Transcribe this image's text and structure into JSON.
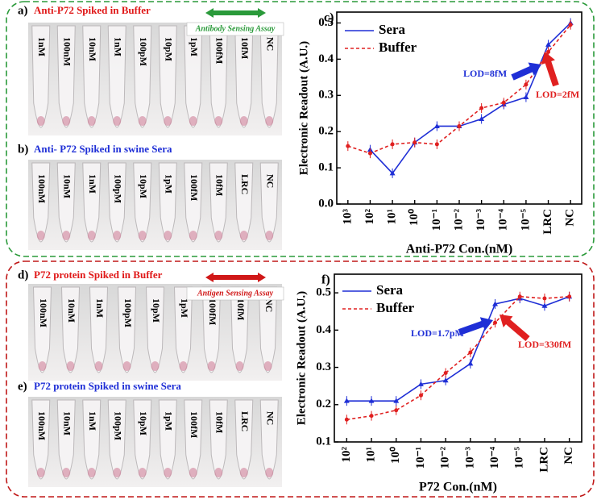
{
  "panels": {
    "a": {
      "letter": "a)",
      "title": "Anti-P72 Spiked in Buffer",
      "assay": "Antibody Sensing Assay",
      "tubes": [
        "1nM",
        "100nM",
        "10nM",
        "1nM",
        "100pM",
        "10pM",
        "1pM",
        "100fM",
        "10fM",
        "NC"
      ]
    },
    "b": {
      "letter": "b)",
      "title": "Anti- P72 Spiked in swine Sera",
      "tubes": [
        "100nM",
        "10nM",
        "1nM",
        "100pM",
        "10pM",
        "1pM",
        "100fM",
        "10fM",
        "LRC",
        "NC"
      ]
    },
    "d": {
      "letter": "d)",
      "title": "P72 protein Spiked in Buffer",
      "assay": "Antigen Sensing Assay",
      "tubes": [
        "100nM",
        "10nM",
        "1nM",
        "100pM",
        "10pM",
        "1pM",
        "100fM",
        "10fM",
        "NC"
      ]
    },
    "e": {
      "letter": "e)",
      "title": "P72 protein Spiked in swine Sera",
      "tubes": [
        "100nM",
        "10nM",
        "1nM",
        "100pM",
        "10pM",
        "1pM",
        "100fM",
        "10fM",
        "LRC",
        "NC"
      ]
    }
  },
  "chart_data": [
    {
      "type": "line",
      "title": "c)",
      "x_label": "Anti-P72 Con.(nM)",
      "y_label": "Electronic Readout (A.U.)",
      "categories": [
        "10³",
        "10²",
        "10¹",
        "10⁰",
        "10⁻¹",
        "10⁻²",
        "10⁻³",
        "10⁻⁴",
        "10⁻⁵",
        "LRC",
        "NC"
      ],
      "series": [
        {
          "name": "Sera",
          "color": "#1f2fd6",
          "values": [
            null,
            0.15,
            0.085,
            0.17,
            0.215,
            0.215,
            0.235,
            0.275,
            0.295,
            0.44,
            0.5
          ]
        },
        {
          "name": "Buffer",
          "color": "#e02020",
          "values": [
            0.16,
            0.14,
            0.165,
            0.17,
            0.165,
            0.215,
            0.265,
            0.28,
            0.33,
            0.42,
            0.495
          ]
        }
      ],
      "ylim": [
        0,
        0.53
      ],
      "yticks": [
        {
          "value": 0,
          "label": "0.0"
        },
        0.1,
        0.2,
        0.3,
        0.4,
        0.5
      ],
      "annotations": [
        {
          "text": "LOD=8fM",
          "color": "#1f2fd6"
        },
        {
          "text": "LOD=2fM",
          "color": "#e02020"
        }
      ]
    },
    {
      "type": "line",
      "title": "f)",
      "x_label": "P72 Con.(nM)",
      "y_label": "Electronic Readout (A.U.)",
      "categories": [
        "10²",
        "10¹",
        "10⁰",
        "10⁻¹",
        "10⁻²",
        "10⁻³",
        "10⁻⁴",
        "10⁻⁵",
        "LRC",
        "NC"
      ],
      "series": [
        {
          "name": "Sera",
          "color": "#1f2fd6",
          "values": [
            0.21,
            0.21,
            0.21,
            0.255,
            0.265,
            0.31,
            0.47,
            0.485,
            0.465,
            0.49
          ]
        },
        {
          "name": "Buffer",
          "color": "#e02020",
          "values": [
            0.16,
            0.17,
            0.185,
            0.225,
            0.285,
            0.34,
            0.42,
            0.49,
            0.485,
            0.49
          ]
        }
      ],
      "ylim": [
        0.1,
        0.55
      ],
      "yticks": [
        0.1,
        0.2,
        0.3,
        0.4,
        0.5
      ],
      "annotations": [
        {
          "text": "LOD=1.7pM",
          "color": "#1f2fd6"
        },
        {
          "text": "LOD=330fM",
          "color": "#e02020"
        }
      ]
    }
  ]
}
